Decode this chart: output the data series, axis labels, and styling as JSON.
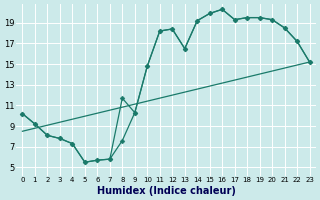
{
  "xlabel": "Humidex (Indice chaleur)",
  "bg_color": "#cceaea",
  "line_color": "#1a7a6a",
  "grid_color": "#ffffff",
  "xlim": [
    -0.5,
    23.5
  ],
  "ylim": [
    4.2,
    20.8
  ],
  "xticks": [
    0,
    1,
    2,
    3,
    4,
    5,
    6,
    7,
    8,
    9,
    10,
    11,
    12,
    13,
    14,
    15,
    16,
    17,
    18,
    19,
    20,
    21,
    22,
    23
  ],
  "yticks": [
    5,
    7,
    9,
    11,
    13,
    15,
    17,
    19
  ],
  "line1_x": [
    0,
    1,
    2,
    3,
    4,
    5,
    6,
    7,
    8,
    9,
    10,
    11,
    12,
    13,
    14,
    15,
    16,
    17,
    18,
    19,
    20,
    21,
    22,
    23
  ],
  "line1_y": [
    10.2,
    9.2,
    8.1,
    7.8,
    7.3,
    5.5,
    5.7,
    5.8,
    11.7,
    10.3,
    14.8,
    18.2,
    18.4,
    16.5,
    19.2,
    19.9,
    20.3,
    19.3,
    19.5,
    19.5,
    19.3,
    18.5,
    17.2,
    15.2
  ],
  "line2_x": [
    0,
    1,
    2,
    3,
    4,
    5,
    6,
    7,
    8,
    9,
    10,
    11,
    12,
    13,
    14,
    15,
    16,
    17,
    18,
    19,
    20,
    21,
    22,
    23
  ],
  "line2_y": [
    10.2,
    9.2,
    8.1,
    7.8,
    7.3,
    5.5,
    5.7,
    5.8,
    7.6,
    10.3,
    14.8,
    18.2,
    18.4,
    16.5,
    19.2,
    19.9,
    20.3,
    19.3,
    19.5,
    19.5,
    19.3,
    18.5,
    17.2,
    15.2
  ],
  "line3_x": [
    0,
    23
  ],
  "line3_y": [
    8.5,
    15.2
  ],
  "figsize": [
    3.2,
    2.0
  ],
  "dpi": 100,
  "xlabel_fontsize": 7,
  "tick_fontsize_x": 5,
  "tick_fontsize_y": 6
}
